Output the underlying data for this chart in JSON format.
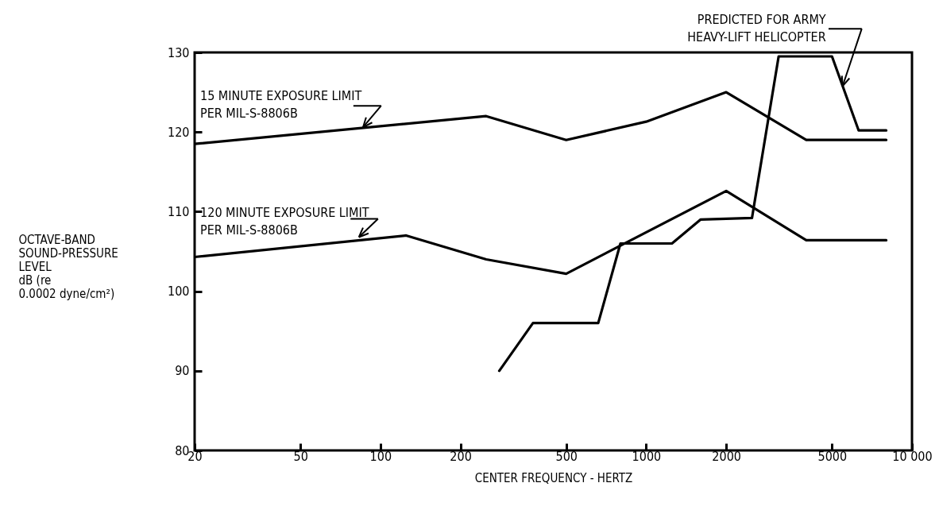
{
  "chart_data": {
    "type": "line",
    "xlabel": "CENTER FREQUENCY - HERTZ",
    "ylabel": "OCTAVE-BAND\nSOUND-PRESSURE\nLEVEL\ndB (re\n0.0002 dyne/cm²)",
    "log": "x",
    "xlim": [
      20,
      10000
    ],
    "ylim": [
      80,
      130
    ],
    "xticks": [
      20,
      50,
      100,
      200,
      500,
      1000,
      2000,
      5000,
      {
        "value": 10000,
        "label": "10 000"
      }
    ],
    "yticks": [
      80,
      90,
      100,
      110,
      120,
      130
    ],
    "series": [
      {
        "color": "#000000",
        "x": [
          20,
          250,
          500,
          1000,
          2000,
          4000,
          8000
        ],
        "values": [
          118.5,
          122,
          119,
          121.3,
          125,
          119,
          119
        ]
      },
      {
        "color": "#000000",
        "x": [
          20,
          125,
          250,
          500,
          2000,
          4000,
          8000
        ],
        "values": [
          104.3,
          107,
          104,
          102.2,
          112.6,
          106.4,
          106.4
        ]
      },
      {
        "color": "#000000",
        "x": [
          280,
          375,
          660,
          800,
          1250,
          1600,
          2500,
          3150,
          5000,
          6300,
          8000
        ],
        "values": [
          90,
          96,
          96,
          106,
          106,
          109,
          109.2,
          129.5,
          129.5,
          120.2,
          120.2
        ]
      }
    ],
    "annotations": [
      {
        "text": "15 MINUTE EXPOSURE LIMIT\nPER MIL-S-8806B",
        "x": 86,
        "y": 120.6
      },
      {
        "text": "120 MINUTE EXPOSURE LIMIT\nPER MIL-S-8806B",
        "x": 83,
        "y": 106.8
      },
      "PREDICTED FOR ARMY\nHEAVY-LIFT HELICOPTER"
    ]
  }
}
